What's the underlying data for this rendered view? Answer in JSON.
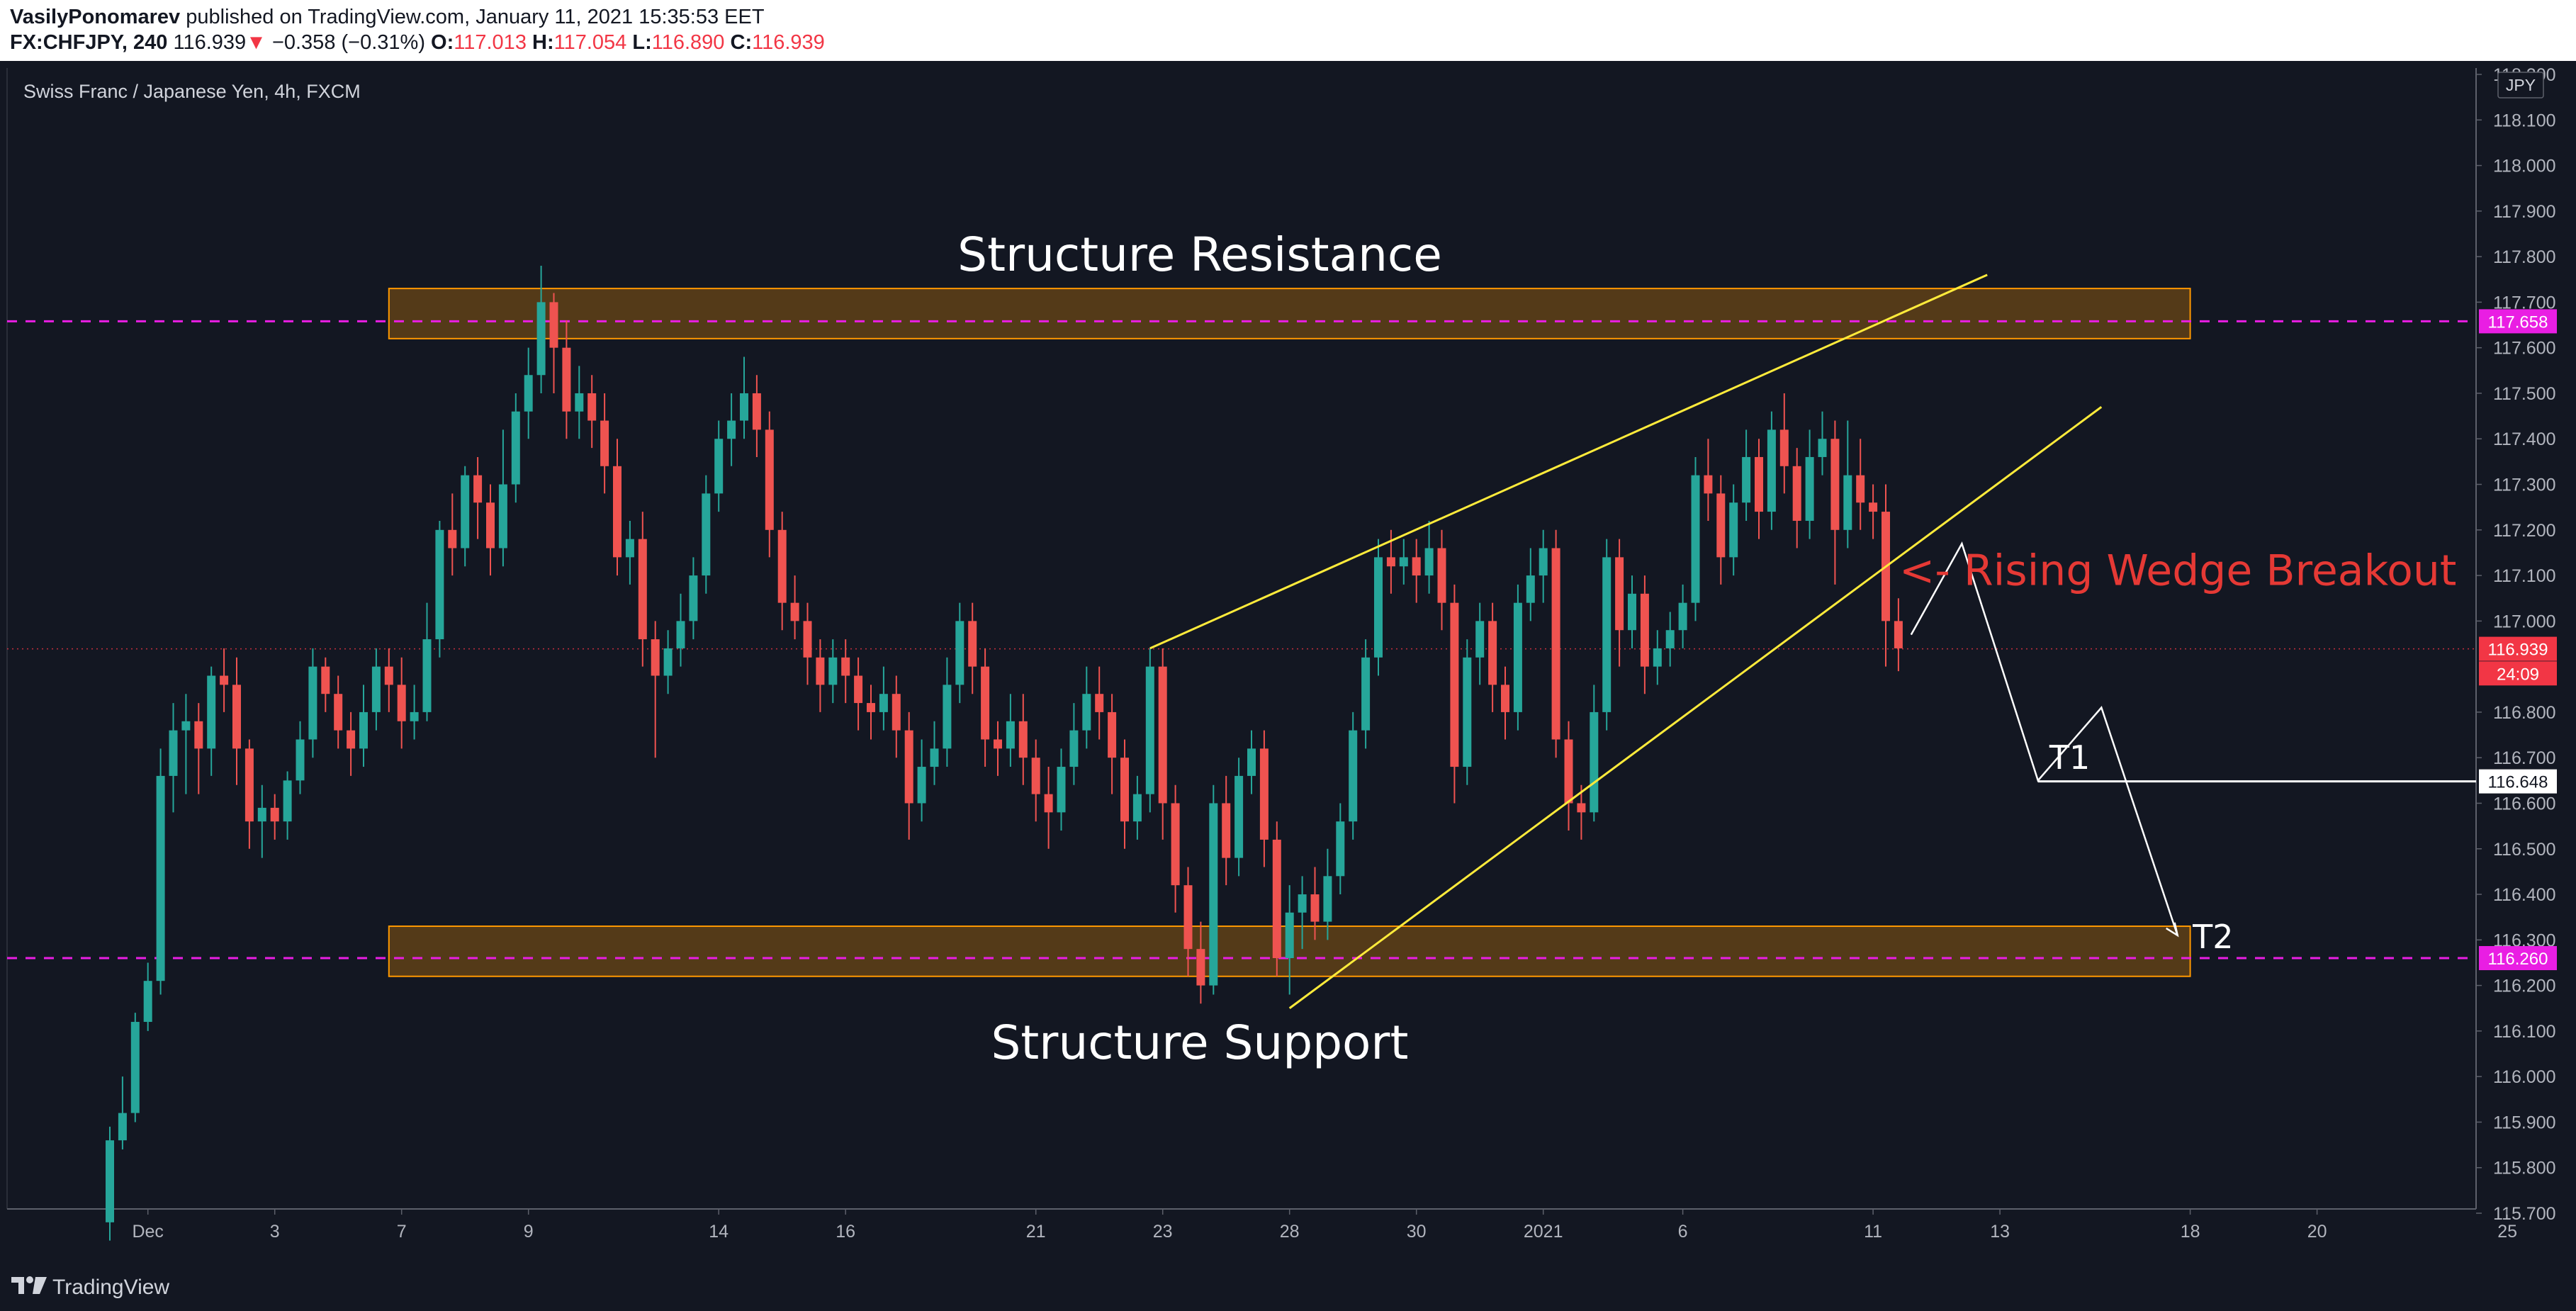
{
  "header": {
    "author": "VasilyPonomarev",
    "published_text": "published on TradingView.com, January 11, 2021 15:35:53 EET",
    "symbol": "FX:CHFJPY, 240",
    "last": "116.939",
    "change_arrow": "▼",
    "change": "−0.358 (−0.31%)",
    "o_label": "O:",
    "o_value": "117.013",
    "h_label": "H:",
    "h_value": "117.054",
    "l_label": "L:",
    "l_value": "116.890",
    "c_label": "C:",
    "c_value": "116.939"
  },
  "footer": {
    "brand": "TradingView"
  },
  "colors": {
    "background": "#131722",
    "up": "#26a69a",
    "down": "#ef5350",
    "zone": "#ff9800",
    "level_line": "#e91ee3",
    "trendline": "#ffeb3b",
    "projection": "#ffffff",
    "annotation_red": "#e53935"
  },
  "chart_data": {
    "type": "candlestick",
    "title": "Swiss Franc / Japanese Yen, 4h, FXCM",
    "currency": "JPY",
    "ylim": [
      115.7,
      118.2
    ],
    "y_ticks": [
      "118.200",
      "118.100",
      "118.000",
      "117.900",
      "117.800",
      "117.700",
      "117.600",
      "117.500",
      "117.400",
      "117.300",
      "117.200",
      "117.100",
      "117.000",
      "116.800",
      "116.700",
      "116.600",
      "116.500",
      "116.400",
      "116.300",
      "116.200",
      "116.100",
      "116.000",
      "115.900",
      "115.800",
      "115.700"
    ],
    "x_ticks": [
      {
        "label": "Dec",
        "bar": 3
      },
      {
        "label": "3",
        "bar": 13
      },
      {
        "label": "7",
        "bar": 23
      },
      {
        "label": "9",
        "bar": 33
      },
      {
        "label": "14",
        "bar": 48
      },
      {
        "label": "16",
        "bar": 58
      },
      {
        "label": "21",
        "bar": 73
      },
      {
        "label": "23",
        "bar": 83
      },
      {
        "label": "28",
        "bar": 93
      },
      {
        "label": "30",
        "bar": 103
      },
      {
        "label": "2021",
        "bar": 113
      },
      {
        "label": "6",
        "bar": 124
      },
      {
        "label": "11",
        "bar": 139
      },
      {
        "label": "13",
        "bar": 149
      },
      {
        "label": "18",
        "bar": 164
      },
      {
        "label": "20",
        "bar": 174
      },
      {
        "label": "25",
        "bar": 189
      }
    ],
    "price_badges": [
      {
        "value": "117.658",
        "price": 117.658,
        "color": "#e91ee3"
      },
      {
        "value": "116.939",
        "price": 116.939,
        "color": "#f23645"
      },
      {
        "value": "24:09",
        "price": 116.885,
        "color": "#f23645"
      },
      {
        "value": "116.648",
        "price": 116.648,
        "color": "#ffffff"
      },
      {
        "value": "116.260",
        "price": 116.26,
        "color": "#e91ee3"
      }
    ],
    "annotations": {
      "resistance_label": "Structure Resistance",
      "support_label": "Structure Support",
      "breakout_label": "<- Rising Wedge Breakout",
      "t1_label": "T1",
      "t2_label": "T2"
    },
    "zones": [
      {
        "name": "resistance",
        "from_bar": 22,
        "to_bar": 164,
        "low": 117.62,
        "high": 117.73
      },
      {
        "name": "support",
        "from_bar": 22,
        "to_bar": 164,
        "low": 116.22,
        "high": 116.33
      }
    ],
    "levels": [
      117.658,
      116.26,
      116.939
    ],
    "trendlines": [
      {
        "x1": 82,
        "y1": 116.94,
        "x2": 148,
        "y2": 117.76
      },
      {
        "x1": 93,
        "y1": 116.15,
        "x2": 157,
        "y2": 117.47
      }
    ],
    "projection": [
      [
        142,
        116.97
      ],
      [
        146,
        117.17
      ],
      [
        152,
        116.65
      ],
      [
        157,
        116.81
      ],
      [
        163,
        116.31
      ]
    ],
    "t1_line": {
      "from_bar": 152,
      "price": 116.648
    },
    "candles": [
      [
        115.68,
        115.86,
        115.64,
        115.89
      ],
      [
        115.86,
        115.92,
        115.84,
        116.0
      ],
      [
        115.92,
        116.12,
        115.9,
        116.14
      ],
      [
        116.12,
        116.21,
        116.1,
        116.25
      ],
      [
        116.21,
        116.66,
        116.18,
        116.72
      ],
      [
        116.66,
        116.76,
        116.58,
        116.82
      ],
      [
        116.76,
        116.78,
        116.62,
        116.84
      ],
      [
        116.78,
        116.72,
        116.62,
        116.82
      ],
      [
        116.72,
        116.88,
        116.66,
        116.9
      ],
      [
        116.88,
        116.86,
        116.8,
        116.94
      ],
      [
        116.86,
        116.72,
        116.64,
        116.92
      ],
      [
        116.72,
        116.56,
        116.5,
        116.74
      ],
      [
        116.56,
        116.59,
        116.48,
        116.64
      ],
      [
        116.59,
        116.56,
        116.52,
        116.62
      ],
      [
        116.56,
        116.65,
        116.52,
        116.67
      ],
      [
        116.65,
        116.74,
        116.62,
        116.78
      ],
      [
        116.74,
        116.9,
        116.7,
        116.94
      ],
      [
        116.9,
        116.84,
        116.8,
        116.92
      ],
      [
        116.84,
        116.76,
        116.72,
        116.88
      ],
      [
        116.76,
        116.72,
        116.66,
        116.8
      ],
      [
        116.72,
        116.8,
        116.68,
        116.86
      ],
      [
        116.8,
        116.9,
        116.76,
        116.94
      ],
      [
        116.9,
        116.86,
        116.8,
        116.94
      ],
      [
        116.86,
        116.78,
        116.72,
        116.92
      ],
      [
        116.78,
        116.8,
        116.74,
        116.86
      ],
      [
        116.8,
        116.96,
        116.78,
        117.04
      ],
      [
        116.96,
        117.2,
        116.92,
        117.22
      ],
      [
        117.2,
        117.16,
        117.1,
        117.28
      ],
      [
        117.16,
        117.32,
        117.12,
        117.34
      ],
      [
        117.32,
        117.26,
        117.18,
        117.36
      ],
      [
        117.26,
        117.16,
        117.1,
        117.3
      ],
      [
        117.16,
        117.3,
        117.12,
        117.42
      ],
      [
        117.3,
        117.46,
        117.26,
        117.5
      ],
      [
        117.46,
        117.54,
        117.4,
        117.6
      ],
      [
        117.54,
        117.7,
        117.5,
        117.78
      ],
      [
        117.7,
        117.6,
        117.5,
        117.72
      ],
      [
        117.6,
        117.46,
        117.4,
        117.66
      ],
      [
        117.46,
        117.5,
        117.4,
        117.56
      ],
      [
        117.5,
        117.44,
        117.38,
        117.54
      ],
      [
        117.44,
        117.34,
        117.28,
        117.5
      ],
      [
        117.34,
        117.14,
        117.1,
        117.4
      ],
      [
        117.14,
        117.18,
        117.08,
        117.22
      ],
      [
        117.18,
        116.96,
        116.9,
        117.24
      ],
      [
        116.96,
        116.88,
        116.7,
        117.0
      ],
      [
        116.88,
        116.94,
        116.84,
        116.98
      ],
      [
        116.94,
        117.0,
        116.9,
        117.06
      ],
      [
        117.0,
        117.1,
        116.96,
        117.14
      ],
      [
        117.1,
        117.28,
        117.06,
        117.32
      ],
      [
        117.28,
        117.4,
        117.24,
        117.44
      ],
      [
        117.4,
        117.44,
        117.34,
        117.5
      ],
      [
        117.44,
        117.5,
        117.4,
        117.58
      ],
      [
        117.5,
        117.42,
        117.36,
        117.54
      ],
      [
        117.42,
        117.2,
        117.14,
        117.46
      ],
      [
        117.2,
        117.04,
        116.98,
        117.24
      ],
      [
        117.04,
        117.0,
        116.96,
        117.1
      ],
      [
        117.0,
        116.92,
        116.86,
        117.04
      ],
      [
        116.92,
        116.86,
        116.8,
        116.96
      ],
      [
        116.86,
        116.92,
        116.82,
        116.96
      ],
      [
        116.92,
        116.88,
        116.82,
        116.96
      ],
      [
        116.88,
        116.82,
        116.76,
        116.92
      ],
      [
        116.82,
        116.8,
        116.74,
        116.86
      ],
      [
        116.8,
        116.84,
        116.76,
        116.9
      ],
      [
        116.84,
        116.76,
        116.7,
        116.88
      ],
      [
        116.76,
        116.6,
        116.52,
        116.8
      ],
      [
        116.6,
        116.68,
        116.56,
        116.74
      ],
      [
        116.68,
        116.72,
        116.64,
        116.78
      ],
      [
        116.72,
        116.86,
        116.68,
        116.92
      ],
      [
        116.86,
        117.0,
        116.82,
        117.04
      ],
      [
        117.0,
        116.9,
        116.84,
        117.04
      ],
      [
        116.9,
        116.74,
        116.68,
        116.94
      ],
      [
        116.74,
        116.72,
        116.66,
        116.78
      ],
      [
        116.72,
        116.78,
        116.68,
        116.84
      ],
      [
        116.78,
        116.7,
        116.64,
        116.84
      ],
      [
        116.7,
        116.62,
        116.56,
        116.74
      ],
      [
        116.62,
        116.58,
        116.5,
        116.68
      ],
      [
        116.58,
        116.68,
        116.54,
        116.72
      ],
      [
        116.68,
        116.76,
        116.64,
        116.82
      ],
      [
        116.76,
        116.84,
        116.72,
        116.9
      ],
      [
        116.84,
        116.8,
        116.74,
        116.9
      ],
      [
        116.8,
        116.7,
        116.62,
        116.84
      ],
      [
        116.7,
        116.56,
        116.5,
        116.74
      ],
      [
        116.56,
        116.62,
        116.52,
        116.66
      ],
      [
        116.62,
        116.9,
        116.58,
        116.94
      ],
      [
        116.9,
        116.6,
        116.52,
        116.94
      ],
      [
        116.6,
        116.42,
        116.36,
        116.64
      ],
      [
        116.42,
        116.28,
        116.22,
        116.46
      ],
      [
        116.28,
        116.2,
        116.16,
        116.34
      ],
      [
        116.2,
        116.6,
        116.18,
        116.64
      ],
      [
        116.6,
        116.48,
        116.42,
        116.66
      ],
      [
        116.48,
        116.66,
        116.44,
        116.7
      ],
      [
        116.66,
        116.72,
        116.62,
        116.76
      ],
      [
        116.72,
        116.52,
        116.46,
        116.76
      ],
      [
        116.52,
        116.26,
        116.22,
        116.56
      ],
      [
        116.26,
        116.36,
        116.18,
        116.42
      ],
      [
        116.36,
        116.4,
        116.28,
        116.44
      ],
      [
        116.4,
        116.34,
        116.3,
        116.46
      ],
      [
        116.34,
        116.44,
        116.3,
        116.5
      ],
      [
        116.44,
        116.56,
        116.4,
        116.6
      ],
      [
        116.56,
        116.76,
        116.52,
        116.8
      ],
      [
        116.76,
        116.92,
        116.72,
        116.96
      ],
      [
        116.92,
        117.14,
        116.88,
        117.18
      ],
      [
        117.14,
        117.12,
        117.06,
        117.2
      ],
      [
        117.12,
        117.14,
        117.08,
        117.18
      ],
      [
        117.14,
        117.1,
        117.04,
        117.18
      ],
      [
        117.1,
        117.16,
        117.06,
        117.22
      ],
      [
        117.16,
        117.04,
        116.98,
        117.2
      ],
      [
        117.04,
        116.68,
        116.6,
        117.08
      ],
      [
        116.68,
        116.92,
        116.64,
        116.96
      ],
      [
        116.92,
        117.0,
        116.86,
        117.04
      ],
      [
        117.0,
        116.86,
        116.8,
        117.04
      ],
      [
        116.86,
        116.8,
        116.74,
        116.9
      ],
      [
        116.8,
        117.04,
        116.76,
        117.08
      ],
      [
        117.04,
        117.1,
        117.0,
        117.16
      ],
      [
        117.1,
        117.16,
        117.04,
        117.2
      ],
      [
        117.16,
        116.74,
        116.7,
        117.2
      ],
      [
        116.74,
        116.6,
        116.54,
        116.78
      ],
      [
        116.6,
        116.58,
        116.52,
        116.64
      ],
      [
        116.58,
        116.8,
        116.56,
        116.86
      ],
      [
        116.8,
        117.14,
        116.76,
        117.18
      ],
      [
        117.14,
        116.98,
        116.9,
        117.18
      ],
      [
        116.98,
        117.06,
        116.94,
        117.1
      ],
      [
        117.06,
        116.9,
        116.84,
        117.1
      ],
      [
        116.9,
        116.94,
        116.86,
        116.98
      ],
      [
        116.94,
        116.98,
        116.9,
        117.02
      ],
      [
        116.98,
        117.04,
        116.94,
        117.08
      ],
      [
        117.04,
        117.32,
        117.0,
        117.36
      ],
      [
        117.32,
        117.28,
        117.22,
        117.4
      ],
      [
        117.28,
        117.14,
        117.08,
        117.32
      ],
      [
        117.14,
        117.26,
        117.1,
        117.3
      ],
      [
        117.26,
        117.36,
        117.22,
        117.42
      ],
      [
        117.36,
        117.24,
        117.18,
        117.4
      ],
      [
        117.24,
        117.42,
        117.2,
        117.46
      ],
      [
        117.42,
        117.34,
        117.28,
        117.5
      ],
      [
        117.34,
        117.22,
        117.16,
        117.38
      ],
      [
        117.22,
        117.36,
        117.18,
        117.42
      ],
      [
        117.36,
        117.4,
        117.32,
        117.46
      ],
      [
        117.4,
        117.2,
        117.08,
        117.44
      ],
      [
        117.2,
        117.32,
        117.16,
        117.44
      ],
      [
        117.32,
        117.26,
        117.2,
        117.4
      ],
      [
        117.26,
        117.24,
        117.18,
        117.3
      ],
      [
        117.24,
        117.0,
        116.9,
        117.3
      ],
      [
        117.0,
        116.94,
        116.89,
        117.05
      ]
    ]
  }
}
